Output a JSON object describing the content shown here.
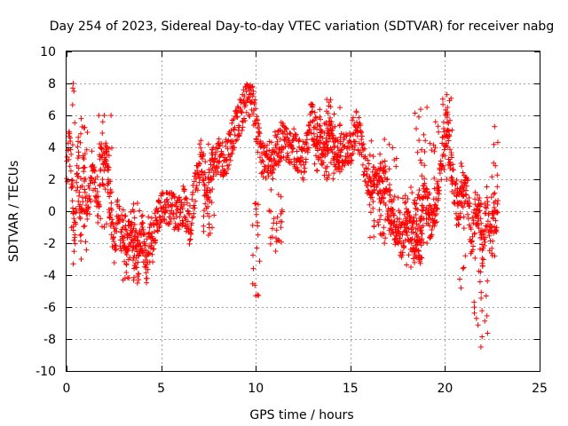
{
  "chart_data": {
    "type": "scatter",
    "title": "Day 254 of 2023, Sidereal Day-to-day VTEC variation (SDTVAR) for receiver nabg",
    "xlabel": "GPS time / hours",
    "ylabel": "SDTVAR / TECUs",
    "xlim": [
      0,
      25
    ],
    "ylim": [
      -10,
      10
    ],
    "xticks": [
      0,
      5,
      10,
      15,
      20,
      25
    ],
    "yticks": [
      -10,
      -8,
      -6,
      -4,
      -2,
      0,
      2,
      4,
      6,
      8,
      10
    ],
    "xtick_labels": [
      "0",
      "5",
      "10",
      "15",
      "20",
      "25"
    ],
    "ytick_labels": [
      "-10",
      "-8",
      "-6",
      "-4",
      "-2",
      "0",
      "2",
      "4",
      "6",
      "8",
      "10"
    ],
    "grid": true,
    "marker": "+",
    "series": [
      {
        "name": "SDTVAR",
        "color": "#ff0000",
        "trend": {
          "x": [
            0.0,
            0.15,
            0.3,
            0.45,
            0.6,
            0.75,
            0.9,
            1.05,
            1.2,
            1.35,
            1.5,
            1.65,
            1.8,
            1.95,
            2.1,
            2.25,
            2.4,
            2.55,
            2.7,
            2.85,
            3.0,
            3.2,
            3.4,
            3.6,
            3.8,
            4.0,
            4.2,
            4.4,
            4.6,
            4.8,
            5.0,
            5.3,
            5.6,
            5.9,
            6.2,
            6.5,
            6.8,
            7.1,
            7.4,
            7.7,
            8.0,
            8.3,
            8.6,
            8.9,
            9.2,
            9.5,
            9.7,
            9.9,
            10.1,
            10.3,
            10.5,
            10.8,
            11.1,
            11.4,
            11.7,
            12.0,
            12.3,
            12.6,
            12.9,
            13.2,
            13.5,
            13.8,
            14.1,
            14.4,
            14.7,
            15.0,
            15.3,
            15.6,
            15.9,
            16.2,
            16.5,
            16.8,
            17.1,
            17.4,
            17.7,
            18.0,
            18.3,
            18.6,
            18.9,
            19.2,
            19.5,
            19.8,
            20.1,
            20.4,
            20.7,
            21.0,
            21.2,
            21.4,
            21.6,
            21.8,
            22.0,
            22.2,
            22.4,
            22.6,
            22.8
          ],
          "y": [
            2.0,
            4.5,
            1.5,
            -2.5,
            4.0,
            -1.5,
            3.0,
            0.5,
            0.5,
            3.0,
            1.5,
            -1.0,
            3.5,
            2.5,
            4.0,
            1.0,
            -1.0,
            -2.5,
            0.0,
            -1.5,
            -1.0,
            -2.0,
            -1.0,
            -2.5,
            -3.0,
            -1.0,
            -3.5,
            -2.0,
            -1.5,
            -0.5,
            0.0,
            0.5,
            0.0,
            -0.5,
            0.5,
            -1.0,
            1.5,
            3.5,
            0.5,
            3.0,
            3.5,
            3.0,
            4.0,
            5.0,
            6.0,
            7.0,
            7.0,
            6.5,
            4.5,
            3.5,
            3.0,
            3.5,
            4.0,
            4.5,
            4.0,
            4.0,
            3.5,
            3.0,
            6.0,
            4.5,
            4.0,
            5.0,
            4.0,
            3.5,
            4.0,
            4.0,
            5.5,
            4.0,
            2.0,
            2.0,
            1.5,
            2.0,
            0.0,
            -1.0,
            -2.0,
            -0.5,
            -2.0,
            -3.0,
            1.5,
            -1.0,
            0.0,
            3.0,
            5.5,
            2.0,
            0.0,
            1.5,
            1.0,
            -2.0,
            0.0,
            0.0,
            -3.0,
            0.5,
            -2.0,
            0.0,
            -0.5
          ]
        },
        "excursions": [
          {
            "x0": 0.25,
            "x1": 0.45,
            "ymin": -3.3,
            "ymax": 8.0
          },
          {
            "x0": 0.45,
            "x1": 1.1,
            "ymin": -3.0,
            "ymax": 5.8
          },
          {
            "x0": 1.6,
            "x1": 2.4,
            "ymin": -1.0,
            "ymax": 6.0
          },
          {
            "x0": 2.9,
            "x1": 4.6,
            "ymin": -4.5,
            "ymax": 0.5
          },
          {
            "x0": 7.2,
            "x1": 7.8,
            "ymin": -1.5,
            "ymax": 4.2
          },
          {
            "x0": 9.8,
            "x1": 10.2,
            "ymin": -5.3,
            "ymax": 0.5
          },
          {
            "x0": 10.7,
            "x1": 11.4,
            "ymin": -2.5,
            "ymax": 3.0
          },
          {
            "x0": 13.0,
            "x1": 14.5,
            "ymin": 2.0,
            "ymax": 7.0
          },
          {
            "x0": 16.0,
            "x1": 17.6,
            "ymin": -2.0,
            "ymax": 4.5
          },
          {
            "x0": 17.5,
            "x1": 18.9,
            "ymin": -3.5,
            "ymax": 1.5
          },
          {
            "x0": 18.4,
            "x1": 19.7,
            "ymin": -2.0,
            "ymax": 6.5
          },
          {
            "x0": 19.8,
            "x1": 20.4,
            "ymin": 2.0,
            "ymax": 7.3
          },
          {
            "x0": 20.6,
            "x1": 21.1,
            "ymin": -4.8,
            "ymax": 3.0
          },
          {
            "x0": 21.5,
            "x1": 22.3,
            "ymin": -8.5,
            "ymax": 0.5
          },
          {
            "x0": 22.45,
            "x1": 22.8,
            "ymin": -2.8,
            "ymax": 5.3
          }
        ]
      }
    ]
  }
}
